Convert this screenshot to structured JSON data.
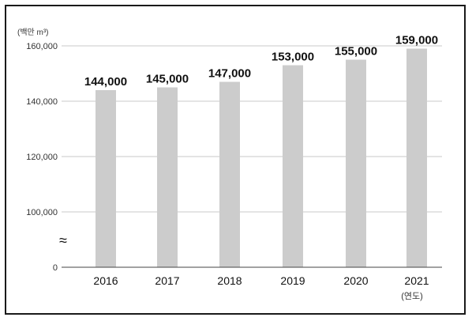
{
  "chart_data": {
    "type": "bar",
    "title": "",
    "ylabel": "(백만 m³)",
    "xlabel": "(연도)",
    "categories": [
      "2016",
      "2017",
      "2018",
      "2019",
      "2020",
      "2021"
    ],
    "values": [
      144000,
      145000,
      147000,
      153000,
      155000,
      159000
    ],
    "data_labels": [
      "144,000",
      "145,000",
      "147,000",
      "153,000",
      "155,000",
      "159,000"
    ],
    "y_ticks": [
      {
        "value": 0,
        "label": "0"
      },
      {
        "value": 100000,
        "label": "100,000"
      },
      {
        "value": 120000,
        "label": "120,000"
      },
      {
        "value": 140000,
        "label": "140,000"
      },
      {
        "value": 160000,
        "label": "160,000"
      }
    ],
    "ylim": [
      0,
      160000
    ],
    "axis_break": {
      "symbol": "≈",
      "between": [
        0,
        100000
      ]
    },
    "grid": true,
    "colors": {
      "bar": "#cccccc",
      "grid": "#c8c8c8",
      "axis": "#444444"
    }
  }
}
